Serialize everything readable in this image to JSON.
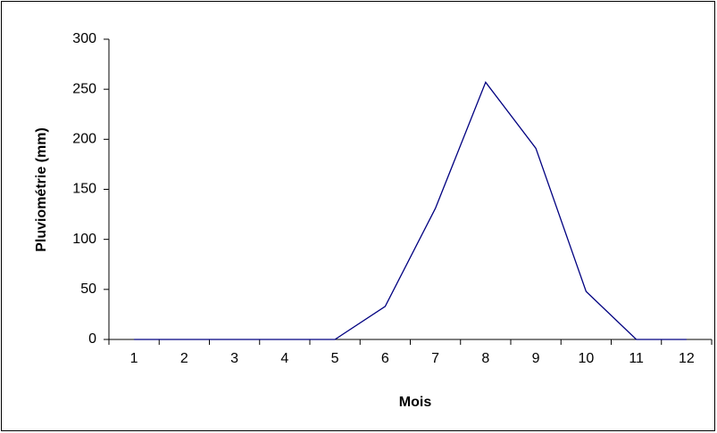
{
  "chart_data": {
    "type": "line",
    "x_label": "Mois",
    "y_label": "Pluviométrie (mm)",
    "categories": [
      1,
      2,
      3,
      4,
      5,
      6,
      7,
      8,
      9,
      10,
      11,
      12
    ],
    "values": [
      0,
      0,
      0,
      0,
      0,
      33,
      131,
      257,
      191,
      48,
      0,
      0
    ],
    "color": "#000080",
    "ylim": [
      0,
      300
    ],
    "yticks": [
      0,
      50,
      100,
      150,
      200,
      250,
      300
    ],
    "grid": false
  }
}
